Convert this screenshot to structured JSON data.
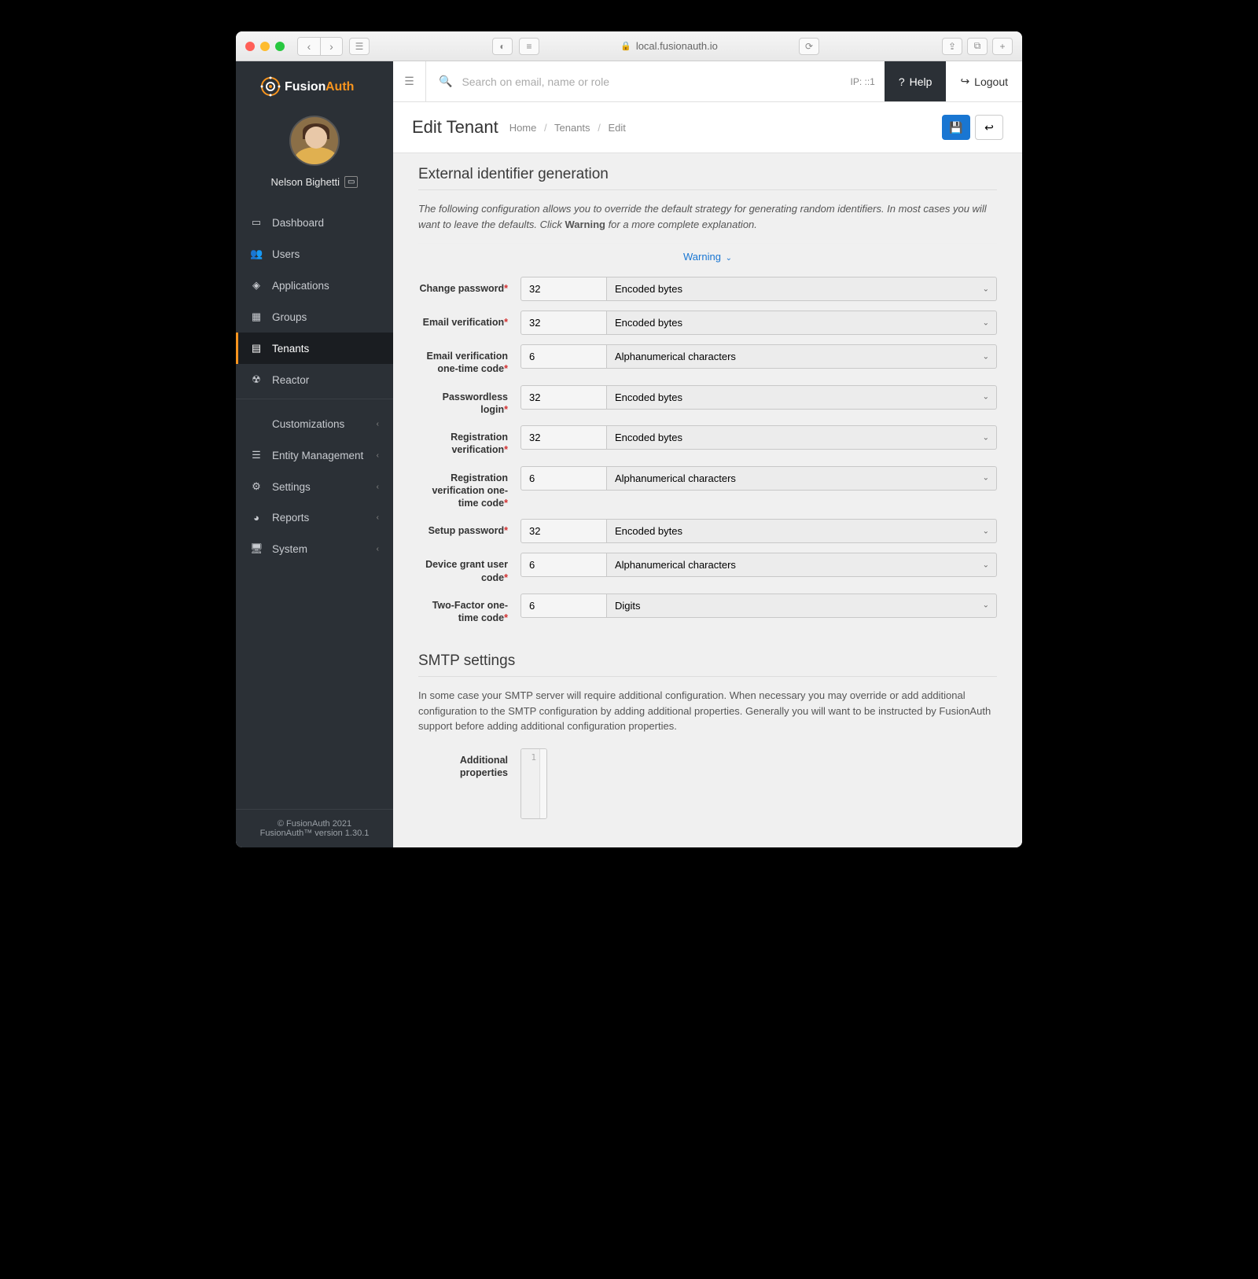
{
  "browser": {
    "url": "local.fusionauth.io"
  },
  "logo": {
    "brand_first": "Fusion",
    "brand_second": "Auth",
    "accent_color": "#f7941e"
  },
  "user": {
    "name": "Nelson Bighetti"
  },
  "sidebar": {
    "items": [
      {
        "label": "Dashboard",
        "icon": "▭"
      },
      {
        "label": "Users",
        "icon": "👥"
      },
      {
        "label": "Applications",
        "icon": "◈"
      },
      {
        "label": "Groups",
        "icon": "▦"
      },
      {
        "label": "Tenants",
        "icon": "▤",
        "active": true
      },
      {
        "label": "Reactor",
        "icon": "☢"
      }
    ],
    "expandable": [
      {
        "label": "Customizations",
        "icon": "</>"
      },
      {
        "label": "Entity Management",
        "icon": "☰"
      },
      {
        "label": "Settings",
        "icon": "⚙"
      },
      {
        "label": "Reports",
        "icon": "◕"
      },
      {
        "label": "System",
        "icon": "🖥"
      }
    ],
    "footer": {
      "copyright": "© FusionAuth 2021",
      "version": "FusionAuth™ version 1.30.1"
    }
  },
  "topbar": {
    "search_placeholder": "Search on email, name or role",
    "ip": "IP: ::1",
    "help_label": "Help",
    "logout_label": "Logout"
  },
  "page": {
    "title": "Edit Tenant",
    "breadcrumb": [
      "Home",
      "Tenants",
      "Edit"
    ]
  },
  "section1": {
    "title": "External identifier generation",
    "desc_pre": "The following configuration allows you to override the default strategy for generating random identifiers. In most cases you will want to leave the defaults. Click ",
    "desc_bold": "Warning",
    "desc_post": " for a more complete explanation.",
    "warning_label": "Warning",
    "rows": [
      {
        "label": "Change password",
        "value": "32",
        "type": "Encoded bytes"
      },
      {
        "label": "Email verification",
        "value": "32",
        "type": "Encoded bytes"
      },
      {
        "label": "Email verification one-time code",
        "value": "6",
        "type": "Alphanumerical characters"
      },
      {
        "label": "Passwordless login",
        "value": "32",
        "type": "Encoded bytes"
      },
      {
        "label": "Registration verification",
        "value": "32",
        "type": "Encoded bytes"
      },
      {
        "label": "Registration verification one-time code",
        "value": "6",
        "type": "Alphanumerical characters"
      },
      {
        "label": "Setup password",
        "value": "32",
        "type": "Encoded bytes"
      },
      {
        "label": "Device grant user code",
        "value": "6",
        "type": "Alphanumerical characters"
      },
      {
        "label": "Two-Factor one-time code",
        "value": "6",
        "type": "Digits"
      }
    ]
  },
  "section2": {
    "title": "SMTP settings",
    "desc": "In some case your SMTP server will require additional configuration. When necessary you may override or add additional configuration to the SMTP configuration by adding additional properties. Generally you will want to be instructed by FusionAuth support before adding additional configuration properties.",
    "prop_label": "Additional properties",
    "gutter_line": "1"
  },
  "colors": {
    "sidebar_bg": "#2b3036",
    "accent": "#f7941e",
    "primary": "#1976d2"
  }
}
